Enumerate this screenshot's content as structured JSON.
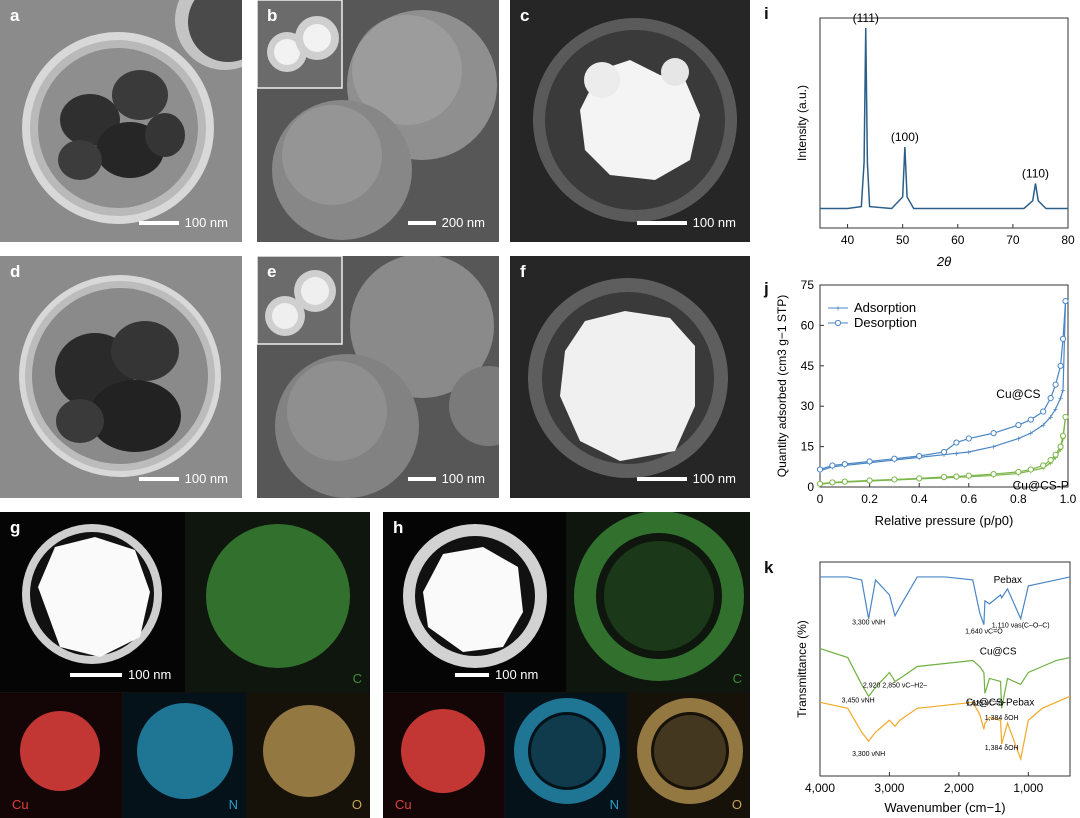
{
  "panels": {
    "a": {
      "label": "a",
      "scale": "100 nm"
    },
    "b": {
      "label": "b",
      "scale": "200 nm"
    },
    "c": {
      "label": "c",
      "scale": "100 nm"
    },
    "d": {
      "label": "d",
      "scale": "100 nm"
    },
    "e": {
      "label": "e",
      "scale": "100 nm"
    },
    "f": {
      "label": "f",
      "scale": "100 nm"
    },
    "g": {
      "label": "g",
      "scale": "100 nm",
      "maps": [
        "C",
        "Cu",
        "N",
        "O"
      ]
    },
    "h": {
      "label": "h",
      "scale": "100 nm",
      "maps": [
        "C",
        "Cu",
        "N",
        "O"
      ]
    },
    "i": {
      "label": "i"
    },
    "j": {
      "label": "j"
    },
    "k": {
      "label": "k"
    }
  },
  "colors": {
    "xrd": "#2b5f8a",
    "cu_cs": "#4a86c5",
    "cu_cs_p": "#7ab648",
    "pebax": "#4a86c5",
    "ftir_cu_cs": "#6fb041",
    "ftir_cu_cs_pebax": "#f1a928",
    "map_c": "#3f8f3a",
    "map_cu": "#e0403c",
    "map_n": "#2a9fc9",
    "map_o": "#c9a45a"
  },
  "chart_data": [
    {
      "id": "i",
      "type": "line",
      "title": "",
      "xlabel": "2θ",
      "ylabel": "Intensity (a.u.)",
      "xlim": [
        35,
        80
      ],
      "xticks": [
        "40",
        "50",
        "60",
        "70",
        "80"
      ],
      "x": [
        35,
        40,
        42.5,
        43.0,
        43.3,
        43.6,
        44,
        48,
        50.0,
        50.4,
        50.8,
        52,
        60,
        72,
        73.6,
        74.1,
        74.6,
        76,
        80
      ],
      "series": [
        {
          "values": [
            0.06,
            0.06,
            0.07,
            0.3,
            1.0,
            0.3,
            0.07,
            0.06,
            0.12,
            0.38,
            0.12,
            0.06,
            0.06,
            0.06,
            0.1,
            0.19,
            0.1,
            0.06,
            0.06
          ]
        }
      ],
      "peaks": [
        {
          "x": 43.3,
          "label": "(111)"
        },
        {
          "x": 50.4,
          "label": "(100)"
        },
        {
          "x": 74.1,
          "label": "(110)"
        }
      ]
    },
    {
      "id": "j",
      "type": "line",
      "title": "",
      "xlabel": "Relative pressure (p/p0)",
      "ylabel": "Quantity adsorbed (cm3 g−1 STP)",
      "xlim": [
        0,
        1.0
      ],
      "ylim": [
        0,
        75
      ],
      "xticks": [
        "0",
        "0.2",
        "0.4",
        "0.6",
        "0.8",
        "1.0"
      ],
      "yticks": [
        "0",
        "15",
        "30",
        "45",
        "60",
        "75"
      ],
      "legend": [
        "Adsorption",
        "Desorption"
      ],
      "legend_position": "top-left",
      "annotations": [
        "Cu@CS",
        "Cu@CS-P"
      ],
      "x": [
        0.0,
        0.05,
        0.1,
        0.2,
        0.3,
        0.4,
        0.5,
        0.55,
        0.6,
        0.7,
        0.8,
        0.85,
        0.9,
        0.93,
        0.95,
        0.97,
        0.98,
        0.99
      ],
      "series": [
        {
          "name": "Cu@CS adsorption",
          "values": [
            6,
            7.5,
            8,
            9,
            10,
            11,
            12,
            12.5,
            13,
            15,
            18,
            20,
            23,
            26,
            29,
            33,
            36,
            69
          ]
        },
        {
          "name": "Cu@CS desorption",
          "values": [
            6.5,
            8,
            8.5,
            9.5,
            10.5,
            11.5,
            13,
            16.5,
            18,
            20,
            23,
            25,
            28,
            33,
            38,
            45,
            55,
            69
          ]
        },
        {
          "name": "Cu@CS-P adsorption",
          "values": [
            1,
            1.5,
            1.8,
            2.2,
            2.6,
            3,
            3.4,
            3.6,
            3.8,
            4.3,
            5,
            6,
            7,
            9,
            11,
            14,
            18,
            26
          ]
        },
        {
          "name": "Cu@CS-P desorption",
          "values": [
            1.2,
            1.7,
            2,
            2.4,
            2.8,
            3.2,
            3.7,
            3.9,
            4.2,
            4.8,
            5.6,
            6.5,
            8,
            10,
            12,
            15,
            19,
            26
          ]
        }
      ]
    },
    {
      "id": "k",
      "type": "line",
      "title": "",
      "xlabel": "Wavenumber (cm−1)",
      "ylabel": "Transmittance (%)",
      "xlim": [
        4000,
        400
      ],
      "xticks": [
        "4,000",
        "3,000",
        "2,000",
        "1,000"
      ],
      "x": [
        4000,
        3600,
        3400,
        3300,
        3200,
        3000,
        2920,
        2850,
        2600,
        2200,
        1800,
        1700,
        1640,
        1625,
        1560,
        1400,
        1384,
        1300,
        1110,
        1000,
        800,
        600,
        400
      ],
      "series": [
        {
          "name": "Pebax",
          "values": [
            92,
            92,
            91,
            78,
            91,
            86,
            79,
            82,
            92,
            92,
            91,
            80,
            76,
            84,
            83,
            86,
            85,
            88,
            78,
            89,
            90,
            91,
            92
          ]
        },
        {
          "name": "Cu@CS",
          "values": [
            68,
            65,
            56,
            52,
            55,
            60,
            57,
            58,
            62,
            63,
            64,
            62,
            60,
            53,
            58,
            57,
            48,
            58,
            56,
            60,
            62,
            64,
            65
          ]
        },
        {
          "name": "Cu@CS-Pebax",
          "values": [
            50,
            48,
            40,
            37,
            40,
            44,
            42,
            44,
            48,
            49,
            50,
            46,
            41,
            43,
            45,
            44,
            36,
            43,
            31,
            44,
            48,
            50,
            52
          ]
        }
      ],
      "annotations": [
        "3,300 νNH",
        "1,640 νC=O",
        "1,110 νas(C–O–C)",
        "2,920 2,850 νC–H2–",
        "3,450 νNH",
        "1,625 νC=O",
        "1,384 δOH",
        "3,300 νNH",
        "1,384 δOH"
      ]
    }
  ]
}
